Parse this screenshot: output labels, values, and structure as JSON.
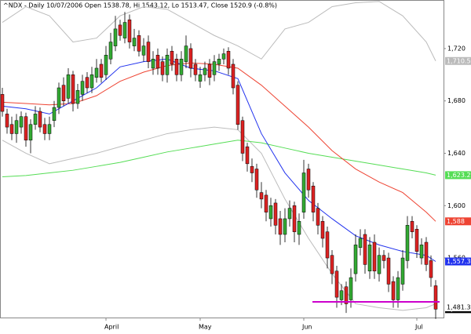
{
  "chart_data": {
    "type": "candlestick",
    "title": "^NDX - Daily 10/07/2006 Open 1538.78, Hi 1543.12, Lo 1513.47, Close 1520.9 (-0.8%)",
    "categories": [
      null,
      null,
      null,
      null,
      null,
      null,
      null,
      null,
      null,
      null,
      null,
      null,
      null,
      null,
      null,
      null,
      null,
      null,
      null,
      null,
      null,
      null,
      "April",
      null,
      null,
      null,
      null,
      null,
      null,
      null,
      null,
      null,
      null,
      null,
      null,
      null,
      null,
      null,
      null,
      null,
      null,
      null,
      "May",
      null,
      null,
      null,
      null,
      null,
      null,
      null,
      null,
      null,
      null,
      null,
      null,
      null,
      null,
      null,
      null,
      null,
      null,
      null,
      null,
      null,
      "Jun",
      null,
      null,
      null,
      null,
      null,
      null,
      null,
      null,
      null,
      null,
      null,
      null,
      null,
      null,
      null,
      null,
      null,
      null,
      null,
      null,
      null,
      null,
      null,
      "Jul",
      null,
      null,
      null,
      null
    ],
    "open": [
      1685,
      1670,
      1662,
      1655,
      1660,
      1668,
      1650,
      1662,
      1672,
      1662,
      1655,
      1665,
      1675,
      1692,
      1682,
      1700,
      1678,
      1685,
      1698,
      1690,
      1698,
      1708,
      1700,
      1712,
      1722,
      1738,
      1728,
      1742,
      1722,
      1730,
      1715,
      1725,
      1705,
      1715,
      1710,
      1700,
      1718,
      1712,
      1700,
      1710,
      1720,
      1708,
      1695,
      1700,
      1708,
      1700,
      1708,
      1712,
      1718,
      1708,
      1692,
      1665,
      1645,
      1630,
      1628,
      1610,
      1608,
      1590,
      1602,
      1590,
      1578,
      1590,
      1600,
      1578,
      1595,
      1628,
      1615,
      1598,
      1588,
      1580,
      1562,
      1550,
      1528,
      1538,
      1528,
      1548,
      1568,
      1578,
      1550,
      1572,
      1548,
      1562,
      1560,
      1542,
      1528,
      1540,
      1558,
      1588,
      1582,
      1560,
      1572,
      1558,
      1538.78
    ],
    "high": [
      1690,
      1674,
      1668,
      1670,
      1672,
      1671,
      1666,
      1676,
      1675,
      1667,
      1668,
      1680,
      1694,
      1698,
      1705,
      1703,
      1693,
      1700,
      1702,
      1706,
      1712,
      1712,
      1722,
      1732,
      1745,
      1742,
      1748,
      1746,
      1735,
      1734,
      1728,
      1730,
      1718,
      1720,
      1714,
      1720,
      1722,
      1716,
      1718,
      1730,
      1724,
      1712,
      1706,
      1710,
      1712,
      1715,
      1716,
      1720,
      1721,
      1712,
      1695,
      1668,
      1648,
      1636,
      1632,
      1618,
      1612,
      1606,
      1605,
      1596,
      1598,
      1604,
      1603,
      1594,
      1635,
      1632,
      1618,
      1602,
      1592,
      1584,
      1566,
      1554,
      1540,
      1542,
      1552,
      1578,
      1582,
      1582,
      1576,
      1578,
      1568,
      1566,
      1564,
      1546,
      1550,
      1566,
      1592,
      1592,
      1585,
      1575,
      1576,
      1562,
      1543.12
    ],
    "low": [
      1668,
      1655,
      1650,
      1648,
      1655,
      1645,
      1640,
      1658,
      1656,
      1650,
      1650,
      1660,
      1670,
      1676,
      1678,
      1672,
      1674,
      1680,
      1686,
      1686,
      1694,
      1694,
      1696,
      1708,
      1718,
      1726,
      1724,
      1720,
      1718,
      1714,
      1710,
      1705,
      1700,
      1700,
      1695,
      1694,
      1703,
      1695,
      1695,
      1705,
      1698,
      1695,
      1690,
      1695,
      1692,
      1695,
      1703,
      1708,
      1700,
      1685,
      1658,
      1634,
      1626,
      1618,
      1606,
      1598,
      1588,
      1584,
      1578,
      1570,
      1572,
      1584,
      1572,
      1570,
      1590,
      1606,
      1588,
      1578,
      1568,
      1552,
      1540,
      1522,
      1524,
      1518,
      1522,
      1542,
      1562,
      1548,
      1544,
      1544,
      1542,
      1552,
      1534,
      1522,
      1522,
      1535,
      1552,
      1575,
      1560,
      1555,
      1550,
      1538,
      1513.47
    ],
    "close": [
      1672,
      1660,
      1655,
      1665,
      1668,
      1650,
      1662,
      1670,
      1660,
      1655,
      1662,
      1675,
      1690,
      1680,
      1700,
      1678,
      1688,
      1695,
      1690,
      1700,
      1705,
      1698,
      1715,
      1725,
      1735,
      1730,
      1740,
      1725,
      1728,
      1718,
      1722,
      1710,
      1712,
      1705,
      1700,
      1715,
      1708,
      1700,
      1712,
      1722,
      1705,
      1700,
      1700,
      1705,
      1698,
      1710,
      1712,
      1716,
      1705,
      1690,
      1662,
      1640,
      1632,
      1625,
      1612,
      1605,
      1595,
      1600,
      1585,
      1578,
      1590,
      1598,
      1580,
      1588,
      1625,
      1612,
      1595,
      1585,
      1575,
      1560,
      1548,
      1530,
      1535,
      1525,
      1545,
      1570,
      1575,
      1555,
      1570,
      1550,
      1562,
      1558,
      1540,
      1528,
      1545,
      1560,
      1585,
      1580,
      1565,
      1570,
      1555,
      1545,
      1520.9
    ],
    "up_color": "#33aa33",
    "down_color": "#dd2222",
    "close_label": "1,520.9",
    "support_label": "1,481.38",
    "support_color": "#cc00cc",
    "indicators": {
      "x": [
        0,
        5,
        10,
        15,
        20,
        25,
        30,
        35,
        40,
        45,
        50,
        55,
        60,
        65,
        70,
        75,
        80,
        85,
        90,
        92
      ],
      "series": [
        {
          "color": "#bbbbbb",
          "values": [
            1740,
            1752,
            1745,
            1725,
            1728,
            1745,
            1752,
            1750,
            1740,
            1730,
            1722,
            1712,
            1735,
            1740,
            1752,
            1755,
            1756,
            1745,
            1725,
            1710.51
          ],
          "end_label": "1,710.51"
        },
        {
          "color": "#bbbbbb",
          "values": [
            1650,
            1640,
            1632,
            1636,
            1640,
            1645,
            1650,
            1655,
            1658,
            1660,
            1658,
            1640,
            1605,
            1575,
            1548,
            1525,
            1522,
            1520,
            1522,
            1525
          ]
        },
        {
          "color": "#55dd55",
          "values": [
            1622,
            1623,
            1625,
            1627,
            1630,
            1633,
            1637,
            1641,
            1644,
            1647,
            1650,
            1648,
            1644,
            1640,
            1637,
            1634,
            1631,
            1628,
            1625,
            1623.27
          ],
          "end_label": "1,623.27"
        },
        {
          "color": "#ee4433",
          "values": [
            1679,
            1678,
            1677,
            1678,
            1684,
            1695,
            1702,
            1707,
            1709,
            1708,
            1705,
            1692,
            1676,
            1660,
            1642,
            1628,
            1618,
            1610,
            1595,
            1588
          ],
          "end_label": "1,588"
        },
        {
          "color": "#2233ee",
          "values": [
            1676,
            1674,
            1670,
            1680,
            1690,
            1706,
            1710,
            1712,
            1705,
            1703,
            1697,
            1655,
            1625,
            1604,
            1590,
            1577,
            1570,
            1565,
            1562,
            1557.33
          ],
          "end_label": "1,557.33"
        }
      ]
    },
    "ylim": [
      1514.5,
      1757.1
    ],
    "yticks": [
      {
        "value": 1720,
        "label": "1,720"
      },
      {
        "value": 1680,
        "label": "1,680"
      },
      {
        "value": 1640,
        "label": "1,640"
      },
      {
        "value": 1600,
        "label": "1,600"
      },
      {
        "value": 1560,
        "label": "1,560"
      }
    ]
  }
}
